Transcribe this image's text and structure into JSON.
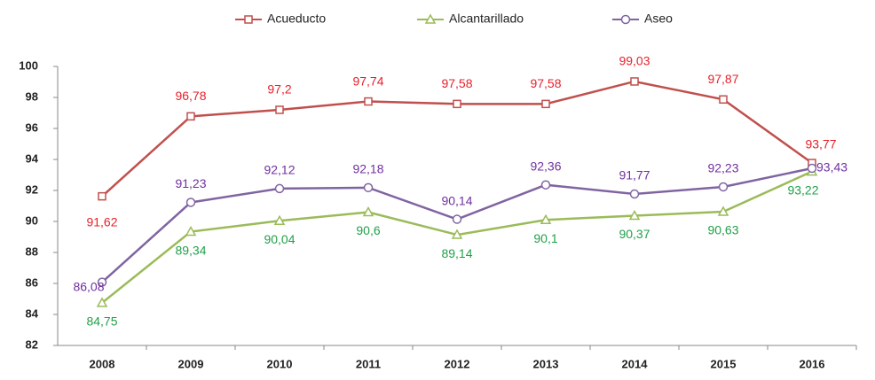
{
  "chart_data": {
    "type": "line",
    "categories": [
      "2008",
      "2009",
      "2010",
      "2011",
      "2012",
      "2013",
      "2014",
      "2015",
      "2016"
    ],
    "series": [
      {
        "name": "Acueducto",
        "color": "#c0504d",
        "label_color": "#e8202a",
        "marker": "square",
        "values": [
          91.62,
          96.78,
          97.2,
          97.74,
          97.58,
          97.58,
          99.03,
          97.87,
          93.77
        ],
        "value_labels": [
          "91,62",
          "96,78",
          "97,2",
          "97,74",
          "97,58",
          "97,58",
          "99,03",
          "97,87",
          "93,77"
        ]
      },
      {
        "name": "Alcantarillado",
        "color": "#9bbb59",
        "label_color": "#22a04a",
        "marker": "triangle",
        "values": [
          84.75,
          89.34,
          90.04,
          90.6,
          89.14,
          90.1,
          90.37,
          90.63,
          93.22
        ],
        "value_labels": [
          "84,75",
          "89,34",
          "90,04",
          "90,6",
          "89,14",
          "90,1",
          "90,37",
          "90,63",
          "93,22"
        ]
      },
      {
        "name": "Aseo",
        "color": "#8064a2",
        "label_color": "#7030a0",
        "marker": "circle",
        "values": [
          86.08,
          91.23,
          92.12,
          92.18,
          90.14,
          92.36,
          91.77,
          92.23,
          93.43
        ],
        "value_labels": [
          "86,08",
          "91,23",
          "92,12",
          "92,18",
          "90,14",
          "92,36",
          "91,77",
          "92,23",
          "93,43"
        ]
      }
    ],
    "ylim": [
      82,
      100
    ],
    "yticks": [
      82,
      84,
      86,
      88,
      90,
      92,
      94,
      96,
      98,
      100
    ],
    "legend": "top"
  }
}
